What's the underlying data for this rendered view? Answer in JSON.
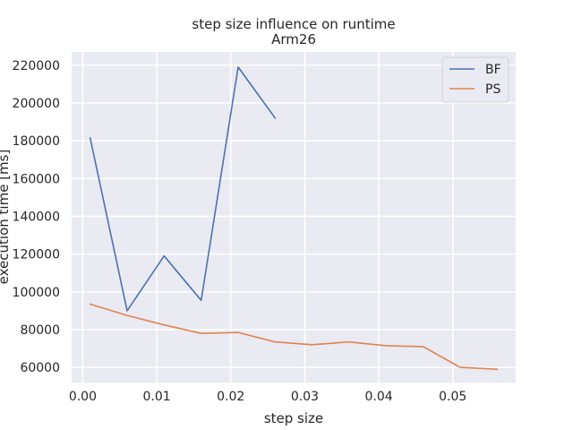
{
  "chart_data": {
    "type": "line",
    "title": "step size influence on runtime",
    "subtitle": "Arm26",
    "xlabel": "step size",
    "ylabel": "execution time [ms]",
    "xlim": [
      -0.0015,
      0.0585
    ],
    "ylim": [
      52000,
      227000
    ],
    "xticks": [
      0,
      0.01,
      0.02,
      0.03,
      0.04,
      0.05
    ],
    "xtick_labels": [
      "0.00",
      "0.01",
      "0.02",
      "0.03",
      "0.04",
      "0.05"
    ],
    "yticks": [
      60000,
      80000,
      100000,
      120000,
      140000,
      160000,
      180000,
      200000,
      220000
    ],
    "ytick_labels": [
      "60000",
      "80000",
      "100000",
      "120000",
      "140000",
      "160000",
      "180000",
      "200000",
      "220000"
    ],
    "grid": true,
    "legend_position": "top-right",
    "series": [
      {
        "name": "BF",
        "color": "#4c72b0",
        "x": [
          0.001,
          0.006,
          0.011,
          0.016,
          0.021,
          0.026
        ],
        "y": [
          181500,
          90000,
          119000,
          95500,
          219000,
          192000
        ]
      },
      {
        "name": "PS",
        "color": "#dd8452",
        "x": [
          0.001,
          0.006,
          0.011,
          0.016,
          0.021,
          0.026,
          0.031,
          0.036,
          0.041,
          0.046,
          0.051,
          0.056
        ],
        "y": [
          93500,
          87500,
          82500,
          78000,
          78500,
          73500,
          72000,
          73500,
          71500,
          71000,
          60000,
          59000
        ]
      }
    ]
  }
}
